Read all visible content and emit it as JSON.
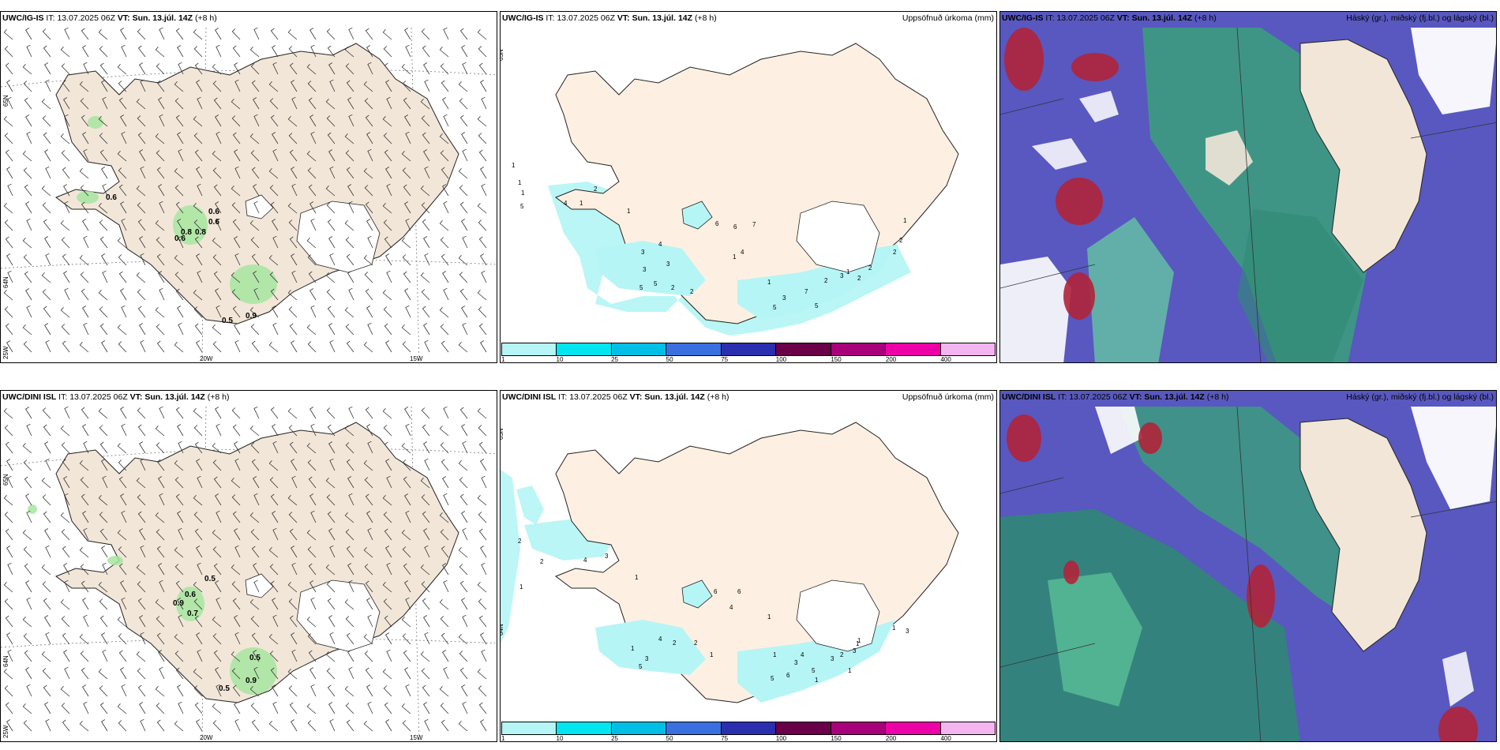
{
  "rows": [
    {
      "model": "UWC/IG-IS",
      "it_label": "IT:",
      "it_value": "13.07.2025 06Z",
      "vt_label": "VT:",
      "vt_value": "Sun. 13.júl. 14Z",
      "lead": "(+8 h)",
      "wind_labels": [
        "0.6",
        "0.6",
        "0.6",
        "0.8",
        "0.8",
        "0.6",
        "0.5",
        "0.9"
      ],
      "precip_labels": [
        "1",
        "1",
        "1",
        "5",
        "4",
        "1",
        "2",
        "1",
        "3",
        "4",
        "3",
        "3",
        "5",
        "5",
        "2",
        "2",
        "1",
        "6",
        "6",
        "4",
        "7",
        "1",
        "3",
        "7",
        "5",
        "5",
        "2",
        "3",
        "1",
        "2",
        "2",
        "2",
        "2",
        "1"
      ]
    },
    {
      "model": "UWC/DINI ISL",
      "it_label": "IT:",
      "it_value": "13.07.2025 06Z",
      "vt_label": "VT:",
      "vt_value": "Sun. 13.júl. 14Z",
      "lead": "(+8 h)",
      "wind_labels": [
        "0.5",
        "0.6",
        "0.9",
        "0.7",
        "0.5",
        "0.5",
        "0.9"
      ],
      "precip_labels": [
        "2",
        "2",
        "1",
        "4",
        "3",
        "1",
        "1",
        "3",
        "4",
        "2",
        "5",
        "2",
        "1",
        "6",
        "4",
        "6",
        "1",
        "1",
        "5",
        "6",
        "4",
        "3",
        "1",
        "5",
        "3",
        "2",
        "3",
        "1",
        "1",
        "1",
        "1",
        "3"
      ]
    }
  ],
  "precip_title": "Uppsöfnuð úrkoma (mm)",
  "cloud_title": "Háský (gr.), miðský (fj.bl.) og lágský (bl.)",
  "legend_ticks": [
    "1",
    "10",
    "25",
    "50",
    "75",
    "100",
    "150",
    "200",
    "400"
  ],
  "legend_colors": [
    "#b6f5f5",
    "#00e5ef",
    "#00bfe6",
    "#3a6fe0",
    "#2a2fb0",
    "#6a0048",
    "#a8007a",
    "#ee00a8",
    "#f4b4ef"
  ],
  "lat_labels": [
    "65N",
    "64N"
  ],
  "lon_labels": [
    "25W",
    "20W",
    "15W"
  ],
  "colors": {
    "land": "#f2e6d8",
    "land_precip": "#fdf0e2",
    "sea_cloud": "#5858c0",
    "precip_fill": "#b6f5f5"
  }
}
